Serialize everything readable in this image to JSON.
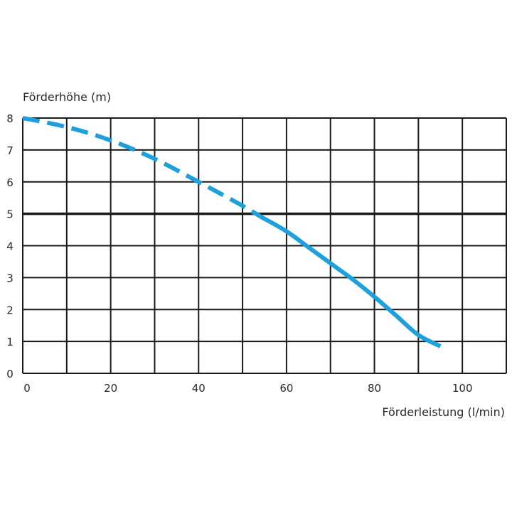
{
  "chart_data": {
    "type": "line",
    "ylabel": "Förderhöhe (m)",
    "xlabel": "Förderleistung (l/min)",
    "xlim": [
      0,
      110
    ],
    "ylim": [
      0,
      8
    ],
    "grid": true,
    "x_tick_labels": [
      "0",
      "20",
      "40",
      "60",
      "80",
      "100"
    ],
    "x_tick_values": [
      0,
      20,
      40,
      60,
      80,
      100
    ],
    "x_grid_values": [
      0,
      10,
      20,
      30,
      40,
      50,
      60,
      70,
      80,
      90,
      100,
      110
    ],
    "y_tick_labels": [
      "0",
      "1",
      "2",
      "3",
      "4",
      "5",
      "6",
      "7",
      "8"
    ],
    "y_tick_values": [
      0,
      1,
      2,
      3,
      4,
      5,
      6,
      7,
      8
    ],
    "reference_line": {
      "y": 5,
      "color": "#1a1a1a"
    },
    "series": [
      {
        "color": "#1ea0dc",
        "style": "dashed",
        "x": [
          0,
          10,
          20,
          30,
          40,
          50,
          54
        ],
        "y": [
          8.0,
          7.72,
          7.3,
          6.72,
          6.0,
          5.25,
          4.92
        ]
      },
      {
        "color": "#1ea0dc",
        "style": "solid",
        "x": [
          54,
          60,
          65,
          70,
          75,
          80,
          85,
          90,
          95
        ],
        "y": [
          4.92,
          4.45,
          3.95,
          3.45,
          2.95,
          2.4,
          1.8,
          1.2,
          0.85
        ]
      }
    ]
  }
}
